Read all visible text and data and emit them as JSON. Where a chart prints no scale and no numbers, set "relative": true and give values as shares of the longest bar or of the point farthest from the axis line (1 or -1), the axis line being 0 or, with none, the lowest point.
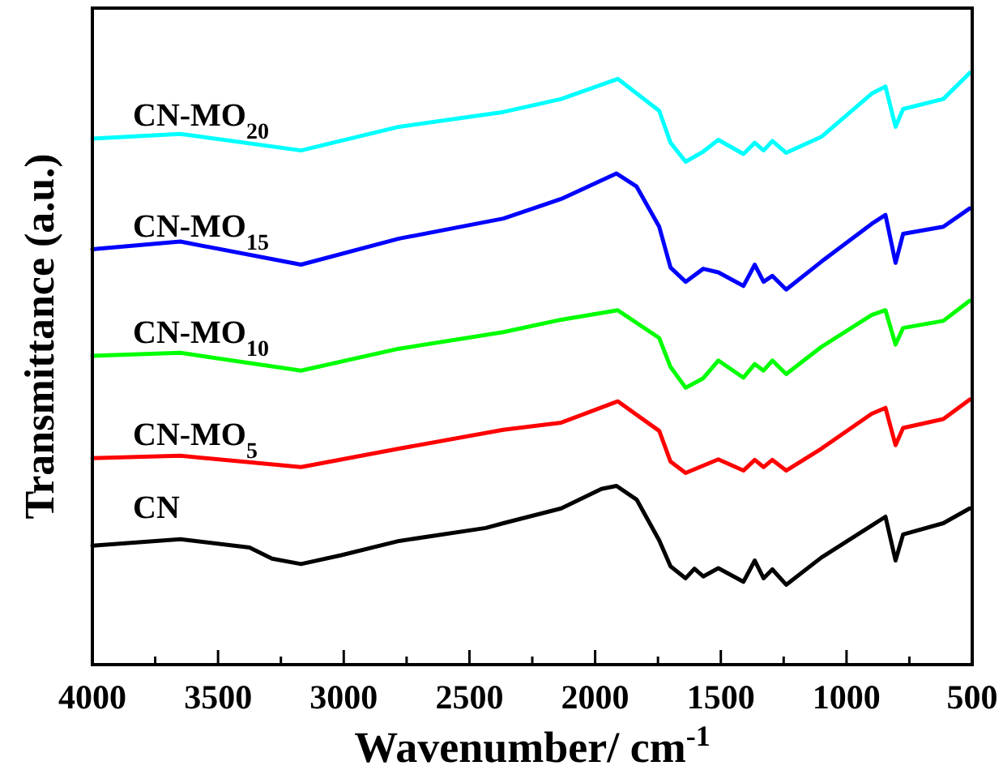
{
  "chart_data": {
    "type": "line",
    "relative": true,
    "xlabel": "Wavenumber/ cm$^{-1}$",
    "ylabel": "Transmittance (a.u.)",
    "xlim": [
      4000,
      500
    ],
    "xticks": [
      4000,
      {
        "value": 3750,
        "label": null
      },
      3500,
      {
        "value": 3250,
        "label": null
      },
      3000,
      {
        "value": 2750,
        "label": null
      },
      2500,
      {
        "value": 2250,
        "label": null
      },
      2000,
      {
        "value": 1750,
        "label": null
      },
      1500,
      {
        "value": 1250,
        "label": null
      },
      1000,
      {
        "value": 750,
        "label": null
      },
      500
    ],
    "tick_labels": "x",
    "grid": false,
    "marker": "none",
    "line_style": "solid",
    "series": [
      {
        "name": "CN",
        "color": "#000000",
        "x": [
          4000,
          3650,
          3375,
          3285,
          3170,
          3010,
          2780,
          2435,
          2365,
          2135,
          1975,
          1915,
          1835,
          1745,
          1700,
          1640,
          1605,
          1570,
          1510,
          1410,
          1365,
          1330,
          1295,
          1240,
          1100,
          900,
          845,
          805,
          775,
          615,
          510
        ],
        "values": [
          0.201,
          0.212,
          0.198,
          0.179,
          0.17,
          0.185,
          0.209,
          0.231,
          0.239,
          0.264,
          0.297,
          0.302,
          0.279,
          0.21,
          0.166,
          0.146,
          0.162,
          0.149,
          0.163,
          0.14,
          0.176,
          0.146,
          0.161,
          0.135,
          0.181,
          0.235,
          0.25,
          0.176,
          0.22,
          0.239,
          0.264
        ]
      },
      {
        "name": "CN-MO$_{5}$",
        "color": "#ff0000",
        "x": [
          4000,
          3650,
          3170,
          2780,
          2365,
          2135,
          1910,
          1745,
          1700,
          1640,
          1510,
          1410,
          1365,
          1330,
          1295,
          1240,
          1100,
          900,
          845,
          805,
          775,
          615,
          510
        ],
        "values": [
          0.349,
          0.353,
          0.334,
          0.365,
          0.397,
          0.409,
          0.445,
          0.395,
          0.343,
          0.324,
          0.347,
          0.328,
          0.346,
          0.334,
          0.346,
          0.328,
          0.365,
          0.424,
          0.434,
          0.371,
          0.4,
          0.415,
          0.448
        ]
      },
      {
        "name": "CN-MO$_{10}$",
        "color": "#00ff00",
        "x": [
          4000,
          3650,
          3170,
          2780,
          2365,
          2135,
          1910,
          1745,
          1700,
          1640,
          1570,
          1510,
          1410,
          1365,
          1330,
          1295,
          1240,
          1100,
          900,
          845,
          805,
          775,
          615,
          510
        ],
        "values": [
          0.522,
          0.527,
          0.497,
          0.534,
          0.562,
          0.583,
          0.599,
          0.552,
          0.503,
          0.468,
          0.484,
          0.514,
          0.485,
          0.508,
          0.497,
          0.514,
          0.491,
          0.537,
          0.591,
          0.599,
          0.541,
          0.569,
          0.581,
          0.615
        ]
      },
      {
        "name": "CN-MO$_{15}$",
        "color": "#0000ff",
        "x": [
          4000,
          3650,
          3170,
          2780,
          2365,
          2135,
          1915,
          1835,
          1745,
          1700,
          1640,
          1570,
          1510,
          1410,
          1365,
          1330,
          1295,
          1240,
          1100,
          900,
          845,
          805,
          775,
          615,
          510
        ],
        "values": [
          0.702,
          0.715,
          0.676,
          0.72,
          0.754,
          0.787,
          0.83,
          0.808,
          0.74,
          0.671,
          0.647,
          0.669,
          0.663,
          0.64,
          0.676,
          0.647,
          0.657,
          0.634,
          0.681,
          0.745,
          0.76,
          0.679,
          0.728,
          0.74,
          0.771
        ]
      },
      {
        "name": "CN-MO$_{20}$",
        "color": "#00ffff",
        "x": [
          4000,
          3650,
          3170,
          2780,
          2365,
          2135,
          1910,
          1745,
          1700,
          1640,
          1570,
          1510,
          1410,
          1365,
          1330,
          1295,
          1240,
          1100,
          900,
          845,
          805,
          775,
          615,
          510
        ],
        "values": [
          0.889,
          0.897,
          0.869,
          0.909,
          0.934,
          0.956,
          0.99,
          0.936,
          0.882,
          0.85,
          0.867,
          0.887,
          0.863,
          0.882,
          0.869,
          0.885,
          0.865,
          0.892,
          0.965,
          0.977,
          0.909,
          0.939,
          0.956,
          1
        ]
      }
    ]
  }
}
